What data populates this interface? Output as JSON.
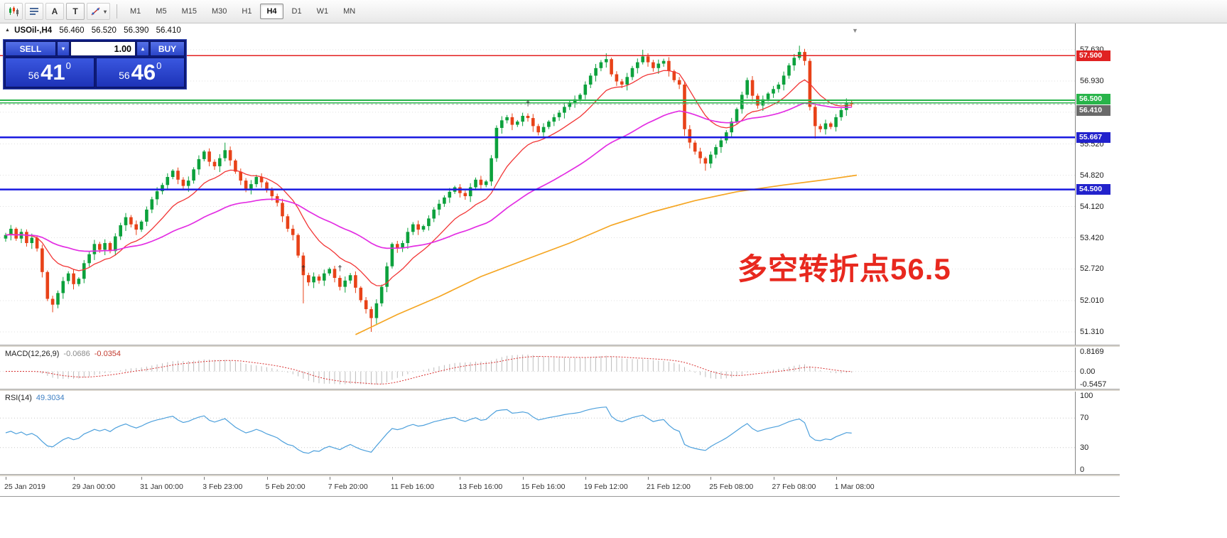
{
  "toolbar": {
    "icons": [
      {
        "name": "bar-chart-icon",
        "glyph": "svg-candles"
      },
      {
        "name": "indicators-list-icon",
        "glyph": "svg-list"
      },
      {
        "name": "add-text-icon",
        "glyph": "A"
      },
      {
        "name": "text-label-icon",
        "glyph": "T",
        "boxed": true
      },
      {
        "name": "draw-objects-icon",
        "glyph": "svg-line",
        "dropdown": true,
        "dropdown_glyph": "▾"
      }
    ],
    "timeframes": [
      "M1",
      "M5",
      "M15",
      "M30",
      "H1",
      "H4",
      "D1",
      "W1",
      "MN"
    ],
    "active_timeframe": "H4"
  },
  "chart": {
    "header": {
      "marker": "▲",
      "symbol": "USOil-,H4",
      "open": "56.460",
      "high": "56.520",
      "low": "56.390",
      "close": "56.410"
    },
    "scroll_marker": "▼",
    "trade_panel": {
      "sell_label": "SELL",
      "buy_label": "BUY",
      "volume": "1.00",
      "sell_dropdown_glyph": "▾",
      "volume_up_glyph": "▴",
      "sell_price": {
        "prefix": "56",
        "big": "41",
        "sup": "0"
      },
      "buy_price": {
        "prefix": "56",
        "big": "46",
        "sup": "0"
      }
    },
    "annotation": {
      "text": "多空转折点56.5",
      "color": "#e8281e"
    }
  },
  "macd": {
    "name": "MACD(12,26,9)",
    "v1": "-0.0686",
    "v2": "-0.0354",
    "axis": [
      "0.8169",
      "0.00",
      "-0.5457"
    ]
  },
  "rsi": {
    "name": "RSI(14)",
    "value": "49.3034",
    "axis": [
      "100",
      "70",
      "30",
      "0"
    ]
  },
  "chart_data": {
    "type": "candlestick",
    "symbol": "USOil-",
    "timeframe": "H4",
    "title": "USOil-,H4",
    "ohlc_current": {
      "open": 56.46,
      "high": 56.52,
      "low": 56.39,
      "close": 56.41
    },
    "y_axis": {
      "max": 57.63,
      "min": 51.31,
      "labels": [
        "57.630",
        "56.930",
        "56.230",
        "55.520",
        "54.820",
        "54.120",
        "53.420",
        "52.720",
        "52.010",
        "51.310"
      ]
    },
    "x_axis": {
      "labels": [
        {
          "i": 0,
          "t": "25 Jan 2019"
        },
        {
          "i": 13,
          "t": "29 Jan 00:00"
        },
        {
          "i": 26,
          "t": "31 Jan 00:00"
        },
        {
          "i": 38,
          "t": "3 Feb 23:00"
        },
        {
          "i": 50,
          "t": "5 Feb 20:00"
        },
        {
          "i": 62,
          "t": "7 Feb 20:00"
        },
        {
          "i": 74,
          "t": "11 Feb 16:00"
        },
        {
          "i": 87,
          "t": "13 Feb 16:00"
        },
        {
          "i": 99,
          "t": "15 Feb 16:00"
        },
        {
          "i": 111,
          "t": "19 Feb 12:00"
        },
        {
          "i": 123,
          "t": "21 Feb 12:00"
        },
        {
          "i": 135,
          "t": "25 Feb 08:00"
        },
        {
          "i": 147,
          "t": "27 Feb 08:00"
        },
        {
          "i": 159,
          "t": "1 Mar 08:00"
        }
      ]
    },
    "levels": [
      {
        "price": 57.5,
        "color": "#e32020",
        "width": 1.5,
        "badge": "57.500",
        "badge_bg": "#e02222",
        "badge_dy": 0
      },
      {
        "price": 56.5,
        "color": "#28b44a",
        "width": 2,
        "badge": "56.500",
        "badge_bg": "#28b44a",
        "badge_dy": -2
      },
      {
        "price": 56.44,
        "color": "#28b44a",
        "width": 1.5
      },
      {
        "price": 56.41,
        "color": "#b0b0b0",
        "width": 1,
        "dash": true,
        "badge": "56.410",
        "badge_bg": "#6a6a6a",
        "badge_dy": 9
      },
      {
        "price": 55.667,
        "color": "#1a1ae0",
        "width": 2.5,
        "badge": "55.667",
        "badge_bg": "#2222cc",
        "badge_dy": 0
      },
      {
        "price": 54.5,
        "color": "#1a1ae0",
        "width": 2.5,
        "badge": "54.500",
        "badge_bg": "#2222cc",
        "badge_dy": 0
      }
    ],
    "moving_averages": [
      {
        "name": "ma-fast",
        "color": "#f23535",
        "period": 13
      },
      {
        "name": "ma-medium",
        "color": "#e32ee3",
        "period": 45
      },
      {
        "name": "ma-slow",
        "color": "#f5a623",
        "waypoints": [
          [
            67,
            51.25
          ],
          [
            75,
            51.7
          ],
          [
            83,
            52.1
          ],
          [
            91,
            52.55
          ],
          [
            100,
            52.95
          ],
          [
            108,
            53.3
          ],
          [
            116,
            53.7
          ],
          [
            124,
            54.0
          ],
          [
            132,
            54.25
          ],
          [
            140,
            54.45
          ],
          [
            149,
            54.6
          ],
          [
            157,
            54.72
          ],
          [
            163,
            54.82
          ]
        ]
      }
    ],
    "candles": {
      "up_color": "#0ca13c",
      "down_color": "#e84218",
      "first_open": 53.4,
      "closes": [
        53.48,
        53.62,
        53.4,
        53.55,
        53.3,
        53.42,
        53.18,
        52.65,
        52.05,
        51.92,
        52.18,
        52.45,
        52.62,
        52.38,
        52.5,
        52.85,
        53.05,
        53.28,
        53.15,
        53.3,
        53.12,
        53.45,
        53.7,
        53.88,
        53.72,
        53.6,
        53.78,
        54.05,
        54.28,
        54.46,
        54.6,
        54.78,
        54.92,
        54.72,
        54.58,
        54.7,
        54.95,
        55.18,
        55.35,
        55.12,
        55.02,
        55.2,
        55.38,
        55.15,
        54.9,
        54.7,
        54.52,
        54.62,
        54.78,
        54.66,
        54.48,
        54.35,
        54.2,
        53.9,
        53.62,
        53.48,
        53.02,
        52.58,
        52.42,
        52.55,
        52.46,
        52.62,
        52.72,
        52.52,
        52.32,
        52.46,
        52.58,
        52.3,
        52.02,
        51.82,
        51.62,
        51.95,
        52.32,
        52.78,
        53.28,
        53.18,
        53.3,
        53.55,
        53.72,
        53.6,
        53.68,
        53.85,
        54.05,
        54.18,
        54.32,
        54.45,
        54.55,
        54.42,
        54.35,
        54.55,
        54.72,
        54.6,
        54.68,
        55.2,
        55.88,
        56.05,
        56.12,
        55.95,
        56.02,
        56.15,
        56.1,
        55.92,
        55.78,
        55.9,
        56.02,
        56.12,
        56.22,
        56.35,
        56.45,
        56.52,
        56.62,
        56.85,
        57.05,
        57.22,
        57.35,
        57.42,
        57.08,
        56.92,
        56.85,
        57.02,
        57.22,
        57.35,
        57.48,
        57.35,
        57.22,
        57.32,
        57.38,
        57.15,
        56.95,
        56.85,
        55.85,
        55.55,
        55.35,
        55.2,
        55.08,
        55.28,
        55.45,
        55.6,
        55.78,
        56.02,
        56.3,
        56.62,
        56.95,
        56.6,
        56.38,
        56.52,
        56.65,
        56.75,
        56.85,
        57.05,
        57.28,
        57.45,
        57.58,
        57.38,
        56.35,
        55.92,
        55.85,
        55.98,
        55.9,
        56.12,
        56.28,
        56.45,
        56.41
      ],
      "wick_overrides": {
        "9": {
          "l": 51.75
        },
        "42": {
          "h": 55.55
        },
        "57": {
          "l": 51.95
        },
        "70": {
          "l": 51.31
        },
        "115": {
          "h": 57.55
        },
        "122": {
          "h": 57.63
        },
        "130": {
          "l": 55.7
        },
        "134": {
          "l": 54.92
        },
        "152": {
          "h": 57.72
        },
        "155": {
          "l": 55.64
        }
      }
    },
    "markers": [
      {
        "i": 57,
        "p": 52.68,
        "glyph": "†"
      },
      {
        "i": 64,
        "p": 52.68,
        "glyph": "†"
      },
      {
        "i": 100,
        "p": 56.37,
        "glyph": "†"
      }
    ],
    "indicators": {
      "macd": {
        "params": [
          12,
          26,
          9
        ],
        "values": [
          -0.0686,
          -0.0354
        ],
        "range": [
          -0.5457,
          0.8169
        ],
        "signal_color": "#d83030",
        "histogram_color": "#bcbcbc"
      },
      "rsi": {
        "period": 14,
        "value": 49.3034,
        "range": [
          0,
          100
        ],
        "levels": [
          70,
          30
        ],
        "color": "#4da0dc"
      }
    }
  }
}
